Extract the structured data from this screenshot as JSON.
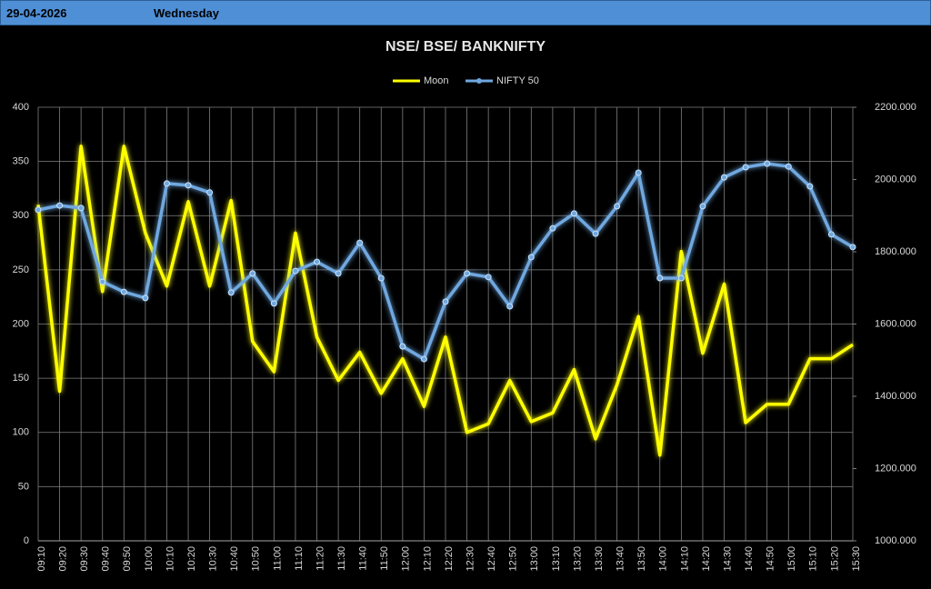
{
  "header": {
    "date": "29-04-2026",
    "day": "Wednesday"
  },
  "chart_data": {
    "type": "line",
    "title": "NSE/ BSE/ BANKNIFTY",
    "categories": [
      "09:10",
      "09:20",
      "09:30",
      "09:40",
      "09:50",
      "10:00",
      "10:10",
      "10:20",
      "10:30",
      "10:40",
      "10:50",
      "11:00",
      "11:10",
      "11:20",
      "11:30",
      "11:40",
      "11:50",
      "12:00",
      "12:10",
      "12:20",
      "12:30",
      "12:40",
      "12:50",
      "13:00",
      "13:10",
      "13:20",
      "13:30",
      "13:40",
      "13:50",
      "14:00",
      "14:10",
      "14:20",
      "14:30",
      "14:40",
      "14:50",
      "15:00",
      "15:10",
      "15:20",
      "15:30"
    ],
    "series": [
      {
        "name": "Moon",
        "color": "#ffff00",
        "markers": false,
        "values": [
          310,
          138,
          364,
          230,
          364,
          284,
          235,
          313,
          235,
          314,
          184,
          156,
          284,
          188,
          148,
          174,
          136,
          168,
          124,
          188,
          100,
          108,
          148,
          110,
          118,
          158,
          94,
          144,
          207,
          79,
          267,
          173,
          237,
          109,
          126,
          126,
          168,
          168,
          181
        ]
      },
      {
        "name": "NIFTY 50",
        "color": "#6fa8e0",
        "markers": true,
        "axis": "y2",
        "values": [
          1916,
          1928,
          1921,
          1717,
          1689,
          1672,
          1989,
          1984,
          1964,
          1687,
          1740,
          1657,
          1747,
          1772,
          1740,
          1825,
          1727,
          1538,
          1503,
          1662,
          1740,
          1730,
          1649,
          1785,
          1865,
          1906,
          1850,
          1926,
          2019,
          1727,
          1727,
          1926,
          2006,
          2034,
          2044,
          2036,
          1981,
          1848,
          1813
        ]
      }
    ],
    "ylim": [
      0,
      400
    ],
    "yticks": [
      0,
      50,
      100,
      150,
      200,
      250,
      300,
      350,
      400
    ],
    "y2lim": [
      1000,
      2200
    ],
    "y2ticks": [
      {
        "value": 1000,
        "label": "1000.000"
      },
      {
        "value": 1200,
        "label": "1200.000"
      },
      {
        "value": 1400,
        "label": "1400.000"
      },
      {
        "value": 1600,
        "label": "1600.000"
      },
      {
        "value": 1800,
        "label": "1800.000"
      },
      {
        "value": 2000,
        "label": "2000.000"
      },
      {
        "value": 2200,
        "label": "2200.000"
      }
    ],
    "grid": true,
    "legend": "top"
  }
}
